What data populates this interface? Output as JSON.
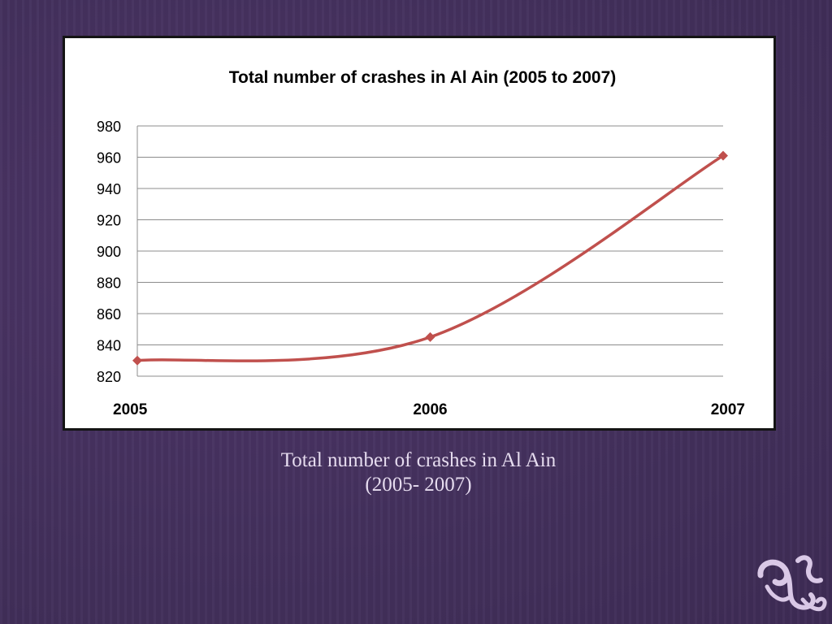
{
  "slide": {
    "caption_line1": "Total number of crashes in Al Ain",
    "caption_line2": "(2005- 2007)",
    "colors": {
      "background": "#46305f",
      "caption_text": "#e6dcef",
      "logo": "#d9c8e6"
    },
    "logo_icon": "ornamental-swirl-icon"
  },
  "chart_data": {
    "type": "line",
    "title": "Total number of crashes in Al Ain (2005 to 2007)",
    "categories": [
      "2005",
      "2006",
      "2007"
    ],
    "series": [
      {
        "values": [
          830,
          845,
          961
        ],
        "color": "#c0504d",
        "marker": "diamond",
        "smooth": true
      }
    ],
    "xlabel": "",
    "ylabel": "",
    "ylim": [
      820,
      980
    ],
    "yticks": [
      "980",
      "960",
      "940",
      "920",
      "900",
      "880",
      "860",
      "840",
      "820"
    ],
    "grid": true,
    "legend": "none"
  }
}
